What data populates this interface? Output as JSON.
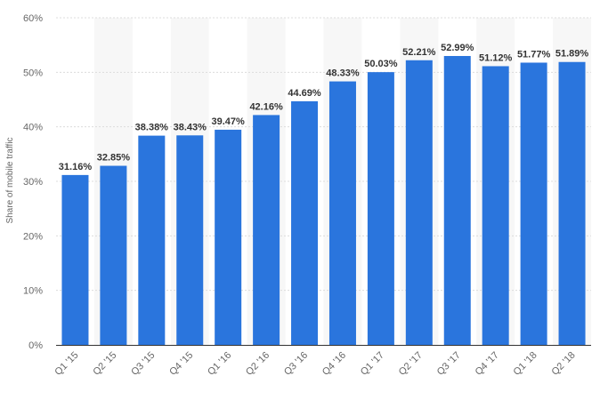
{
  "chart_data": {
    "type": "bar",
    "ylabel": "Share of mobile traffic",
    "ylim": [
      0,
      60
    ],
    "y_ticks": [
      "0%",
      "10%",
      "20%",
      "30%",
      "40%",
      "50%",
      "60%"
    ],
    "y_tick_values": [
      0,
      10,
      20,
      30,
      40,
      50,
      60
    ],
    "categories": [
      "Q1 '15",
      "Q2 '15",
      "Q3 '15",
      "Q4 '15",
      "Q1 '16",
      "Q2 '16",
      "Q3 '16",
      "Q4 '16",
      "Q1 '17",
      "Q2 '17",
      "Q3 '17",
      "Q4 '17",
      "Q1 '18",
      "Q2 '18"
    ],
    "values": [
      31.16,
      32.85,
      38.38,
      38.43,
      39.47,
      42.16,
      44.69,
      48.33,
      50.03,
      52.21,
      52.99,
      51.12,
      51.77,
      51.89
    ],
    "value_labels": [
      "31.16%",
      "32.85%",
      "38.38%",
      "38.43%",
      "39.47%",
      "42.16%",
      "44.69%",
      "48.33%",
      "50.03%",
      "52.21%",
      "52.99%",
      "51.12%",
      "51.77%",
      "51.89%"
    ],
    "grid": true,
    "alternating_column_bands": true,
    "colors": {
      "bar": "#2a75dd",
      "grid": "#dcdcdc",
      "band": "#f7f7f7",
      "axis": "#333333"
    }
  }
}
